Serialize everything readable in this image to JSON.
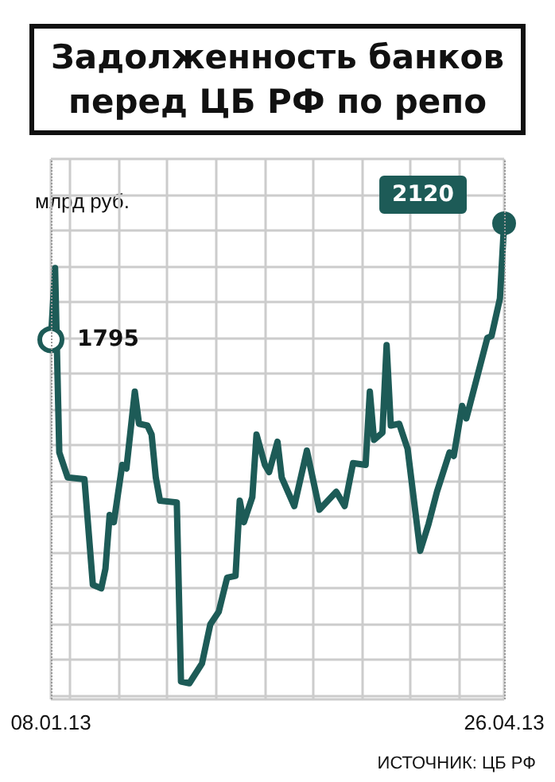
{
  "chart_data": {
    "type": "line",
    "title": "Задолженность банков\nперед ЦБ РФ по репо",
    "ylabel": "млрд руб.",
    "annotations": [
      "ИСТОЧНИК: ЦБ РФ"
    ],
    "x": [
      "2013-01-08",
      "2013-01-09",
      "2013-01-10",
      "2013-01-12",
      "2013-01-16",
      "2013-01-18",
      "2013-01-20",
      "2013-01-21",
      "2013-01-22",
      "2013-01-23",
      "2013-01-25",
      "2013-01-26",
      "2013-01-28",
      "2013-01-29",
      "2013-01-31",
      "2013-02-01",
      "2013-02-02",
      "2013-02-03",
      "2013-02-07",
      "2013-02-08",
      "2013-02-10",
      "2013-02-13",
      "2013-02-15",
      "2013-02-17",
      "2013-02-19",
      "2013-02-21",
      "2013-02-22",
      "2013-02-23",
      "2013-02-25",
      "2013-02-26",
      "2013-02-28",
      "2013-03-01",
      "2013-03-03",
      "2013-03-04",
      "2013-03-07",
      "2013-03-10",
      "2013-03-13",
      "2013-03-17",
      "2013-03-19",
      "2013-03-21",
      "2013-03-24",
      "2013-03-25",
      "2013-03-26",
      "2013-03-28",
      "2013-03-29",
      "2013-03-30",
      "2013-04-01",
      "2013-04-03",
      "2013-04-06",
      "2013-04-08",
      "2013-04-10",
      "2013-04-13",
      "2013-04-14",
      "2013-04-16",
      "2013-04-17",
      "2013-04-22",
      "2013-04-23",
      "2013-04-25",
      "2013-04-26"
    ],
    "series": [
      {
        "color": "#1d5b57",
        "values": [
          1795,
          1995,
          1480,
          1410,
          1405,
          1110,
          1100,
          1155,
          1305,
          1285,
          1445,
          1435,
          1650,
          1560,
          1555,
          1530,
          1410,
          1345,
          1340,
          840,
          835,
          890,
          1000,
          1035,
          1130,
          1135,
          1345,
          1285,
          1355,
          1530,
          1445,
          1425,
          1510,
          1410,
          1330,
          1485,
          1320,
          1370,
          1330,
          1450,
          1445,
          1650,
          1515,
          1535,
          1780,
          1555,
          1560,
          1490,
          1205,
          1280,
          1370,
          1480,
          1470,
          1610,
          1575,
          1800,
          1805,
          1910,
          2120
        ],
        "value_labels": [
          "1795",
          null,
          null,
          null,
          null,
          null,
          null,
          null,
          null,
          null,
          null,
          null,
          null,
          null,
          null,
          null,
          null,
          null,
          null,
          null,
          null,
          null,
          null,
          null,
          null,
          null,
          null,
          null,
          null,
          null,
          null,
          null,
          null,
          null,
          null,
          null,
          null,
          null,
          null,
          null,
          null,
          null,
          null,
          null,
          null,
          null,
          null,
          null,
          null,
          null,
          null,
          null,
          null,
          null,
          null,
          null,
          null,
          null,
          "2120"
        ]
      }
    ],
    "xlim": [
      "2013-01-08",
      "2013-04-26"
    ],
    "xticks": [
      {
        "value": "2013-01-08",
        "label": "08.01.13"
      },
      {
        "value": "2013-04-26",
        "label": "26.04.13"
      }
    ],
    "ylim": [
      790,
      2300
    ],
    "tick_labels": "x",
    "grid": true,
    "marker": "none",
    "line_style": "solid",
    "ref_lines": [
      {
        "axis": "x",
        "value": "2013-01-08",
        "color": "#999999",
        "line_style": "dotted"
      },
      {
        "axis": "x",
        "value": "2013-04-26",
        "color": "#999999",
        "line_style": "dotted"
      }
    ]
  }
}
